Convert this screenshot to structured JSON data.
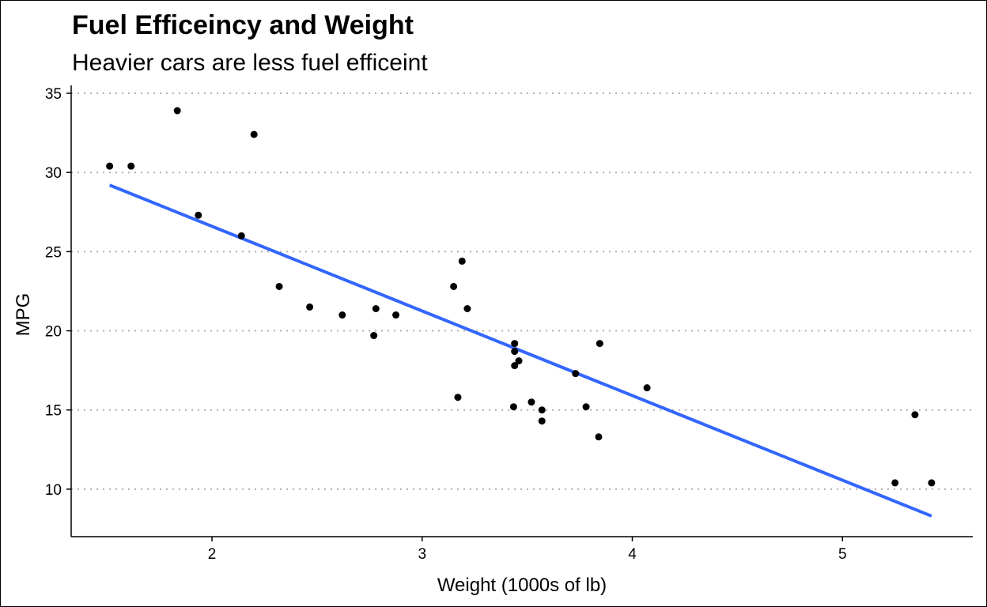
{
  "chart_data": {
    "type": "scatter",
    "title": "Fuel Efficeincy and Weight",
    "subtitle": "Heavier cars are less fuel efficeint",
    "xlabel": "Weight (1000s of lb)",
    "ylabel": "MPG",
    "xlim": [
      1.33,
      5.62
    ],
    "ylim": [
      7,
      35.5
    ],
    "x_ticks": [
      2,
      3,
      4,
      5
    ],
    "y_ticks": [
      10,
      15,
      20,
      25,
      30,
      35
    ],
    "grid": "horizontal-dotted",
    "legend": "none",
    "point_color": "#000000",
    "line_color": "#3366FF",
    "trendline": {
      "type": "linear",
      "x": [
        1.513,
        5.424
      ],
      "y": [
        29.2,
        8.3
      ]
    },
    "points": [
      {
        "x": 2.62,
        "y": 21.0
      },
      {
        "x": 2.875,
        "y": 21.0
      },
      {
        "x": 2.32,
        "y": 22.8
      },
      {
        "x": 3.215,
        "y": 21.4
      },
      {
        "x": 3.44,
        "y": 18.7
      },
      {
        "x": 3.46,
        "y": 18.1
      },
      {
        "x": 3.57,
        "y": 14.3
      },
      {
        "x": 3.19,
        "y": 24.4
      },
      {
        "x": 3.15,
        "y": 22.8
      },
      {
        "x": 3.44,
        "y": 19.2
      },
      {
        "x": 3.44,
        "y": 17.8
      },
      {
        "x": 4.07,
        "y": 16.4
      },
      {
        "x": 3.73,
        "y": 17.3
      },
      {
        "x": 3.78,
        "y": 15.2
      },
      {
        "x": 5.25,
        "y": 10.4
      },
      {
        "x": 5.424,
        "y": 10.4
      },
      {
        "x": 5.345,
        "y": 14.7
      },
      {
        "x": 2.2,
        "y": 32.4
      },
      {
        "x": 1.615,
        "y": 30.4
      },
      {
        "x": 1.835,
        "y": 33.9
      },
      {
        "x": 2.465,
        "y": 21.5
      },
      {
        "x": 3.52,
        "y": 15.5
      },
      {
        "x": 3.435,
        "y": 15.2
      },
      {
        "x": 3.84,
        "y": 13.3
      },
      {
        "x": 3.845,
        "y": 19.2
      },
      {
        "x": 1.935,
        "y": 27.3
      },
      {
        "x": 2.14,
        "y": 26.0
      },
      {
        "x": 1.513,
        "y": 30.4
      },
      {
        "x": 3.17,
        "y": 15.8
      },
      {
        "x": 2.77,
        "y": 19.7
      },
      {
        "x": 3.57,
        "y": 15.0
      },
      {
        "x": 2.78,
        "y": 21.4
      }
    ]
  }
}
